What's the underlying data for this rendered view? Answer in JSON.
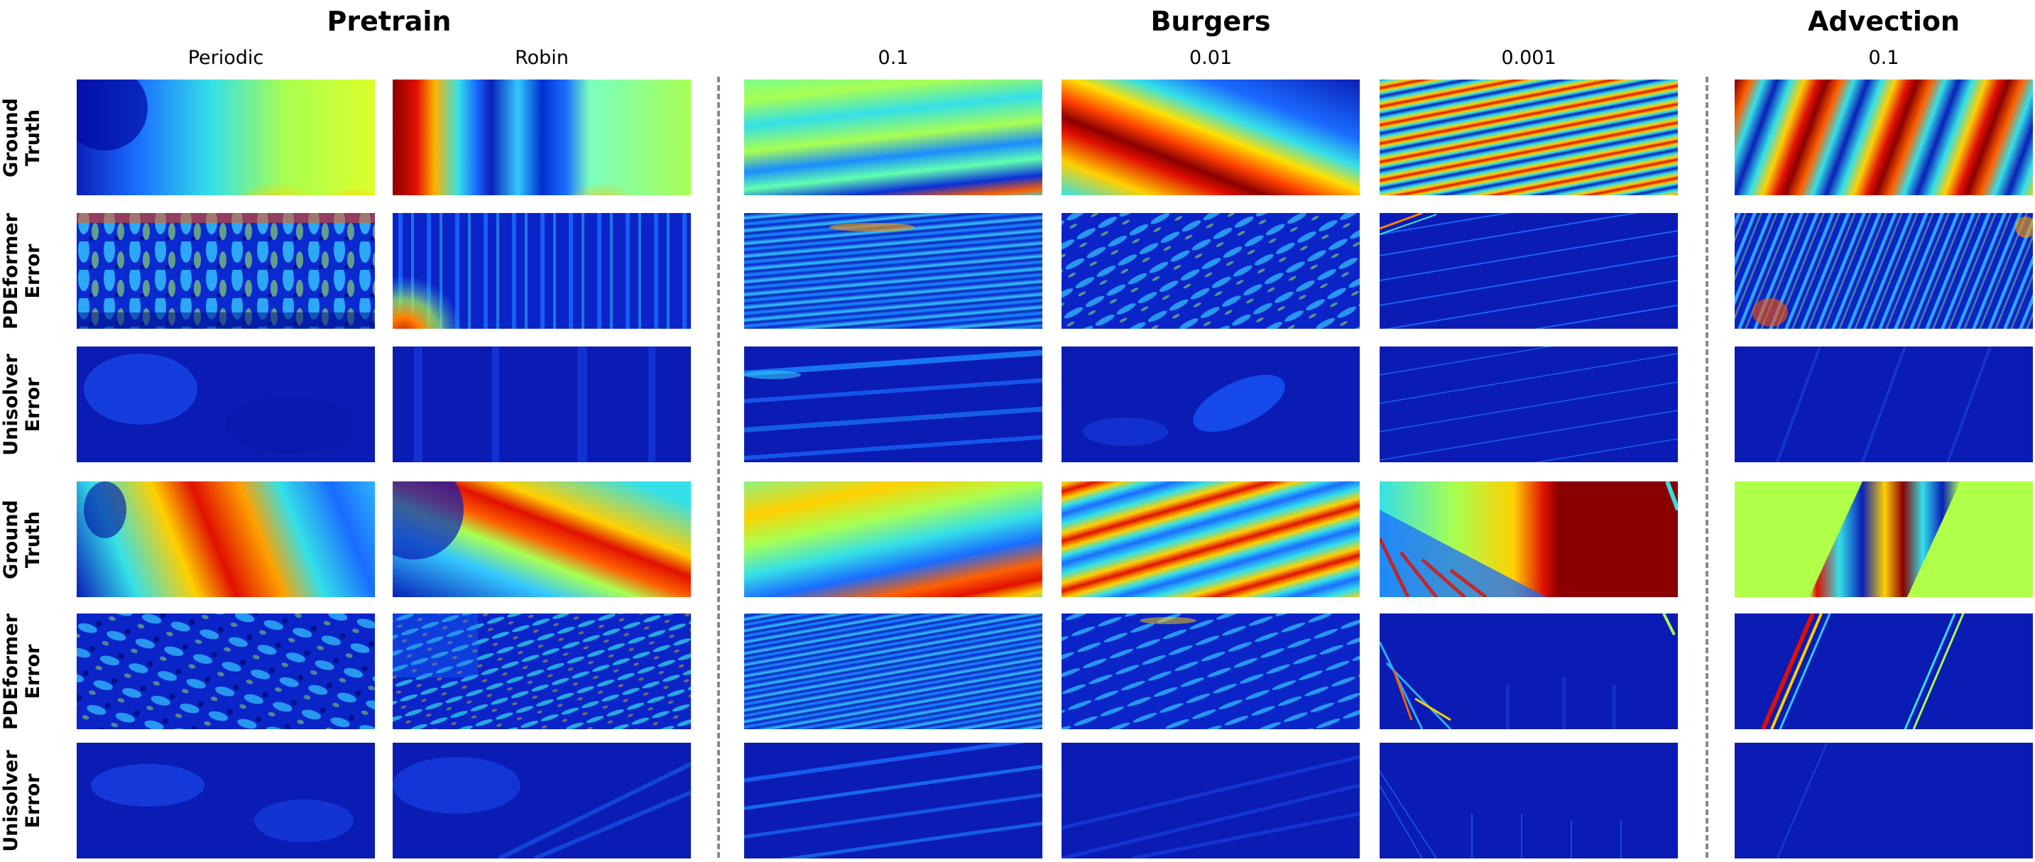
{
  "groups": {
    "pretrain": "Pretrain",
    "burgers": "Burgers",
    "advection": "Advection"
  },
  "columns": {
    "c0": "Periodic",
    "c1": "Robin",
    "c2": "0.1",
    "c3": "0.01",
    "c4": "0.001",
    "c5": "0.1"
  },
  "rows": {
    "gt": {
      "l1": "Ground",
      "l2": "Truth"
    },
    "pde": {
      "l1": "PDEformer",
      "l2": "Error"
    },
    "uni": {
      "l1": "Unisolver",
      "l2": "Error"
    }
  },
  "colormap": "jet"
}
